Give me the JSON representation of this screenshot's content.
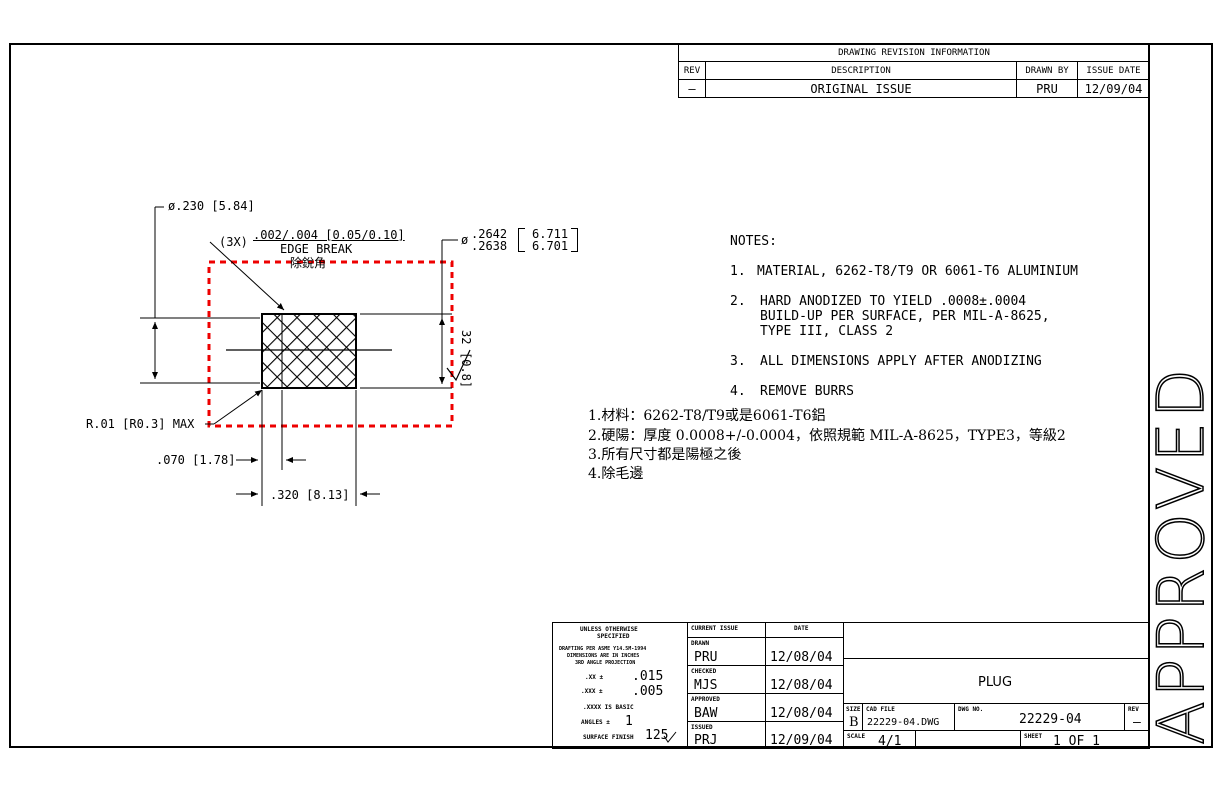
{
  "revision": {
    "title": "DRAWING REVISION INFORMATION",
    "headers": [
      "REV",
      "DESCRIPTION",
      "DRAWN BY",
      "ISSUE DATE"
    ],
    "row": [
      "–",
      "ORIGINAL ISSUE",
      "PRU",
      "12/09/04"
    ]
  },
  "dims": {
    "dia_head": "ø.230 [5.84]",
    "edge_count": "(3X)",
    "edge_tol": ".002/.004 [0.05/0.10]",
    "edge_break": "EDGE BREAK",
    "edge_break_cn": "除銳角",
    "dia_shaft_prefix": "ø",
    "dia_shaft_1": ".2642",
    "dia_shaft_2": ".2638",
    "dia_shaft_mm_1": "6.711",
    "dia_shaft_mm_2": "6.701",
    "finish": "32",
    "finish_mm": "[0.8]",
    "radius": "R.01 [R0.3] MAX",
    "len_head": ".070 [1.78]",
    "len_total": ".320 [8.13]"
  },
  "notes": {
    "heading": "NOTES:",
    "items": [
      {
        "num": "1.",
        "lines": [
          "MATERIAL, 6262-T8/T9 OR 6061-T6 ALUMINIUM"
        ]
      },
      {
        "num": "2.",
        "lines": [
          "HARD ANODIZED TO YIELD .0008±.0004",
          "BUILD-UP PER SURFACE, PER MIL-A-8625,",
          "TYPE III, CLASS 2"
        ]
      },
      {
        "num": "3.",
        "lines": [
          "ALL DIMENSIONS APPLY AFTER ANODIZING"
        ]
      },
      {
        "num": "4.",
        "lines": [
          "REMOVE BURRS"
        ]
      }
    ],
    "cn": [
      "1.材料：6262-T8/T9或是6061-T6鋁",
      "2.硬陽：厚度 0.0008+/-0.0004，依照規範 MIL-A-8625，TYPE3，等級2",
      "3.所有尺寸都是陽極之後",
      "4.除毛邊"
    ]
  },
  "stamp": "APPROVED",
  "title_block": {
    "unless_1": "UNLESS OTHERWISE",
    "unless_2": "SPECIFIED",
    "drafting_1": "DRAFTING PER ASME Y14.5M-1994",
    "drafting_2": "DIMENSIONS ARE IN INCHES",
    "drafting_3": "3RD ANGLE PROJECTION",
    "tol_xx_label": ".XX ±",
    "tol_xx": ".015",
    "tol_xxx_label": ".XXX ±",
    "tol_xxx": ".005",
    "basic": ".XXXX IS BASIC",
    "angles_label": "ANGLES ±",
    "angles": "1",
    "finish_label": "SURFACE FINISH",
    "finish": "125",
    "current_issue": "CURRENT ISSUE",
    "date_h": "DATE",
    "drawn_l": "DRAWN",
    "drawn": "PRU",
    "drawn_d": "12/08/04",
    "checked_l": "CHECKED",
    "checked": "MJS",
    "checked_d": "12/08/04",
    "approved_l": "APPROVED",
    "approved": "BAW",
    "approved_d": "12/08/04",
    "issued_l": "ISSUED",
    "issued": "PRJ",
    "issued_d": "12/09/04",
    "title": "PLUG",
    "size_l": "SIZE",
    "size": "B",
    "cad_l": "CAD FILE",
    "cad": "22229-04.DWG",
    "dwg_l": "DWG NO.",
    "dwg": "22229-04",
    "rev_l": "REV",
    "rev": "–",
    "scale_l": "SCALE",
    "scale": "4/1",
    "sheet_l": "SHEET",
    "sheet": "1 OF 1"
  }
}
